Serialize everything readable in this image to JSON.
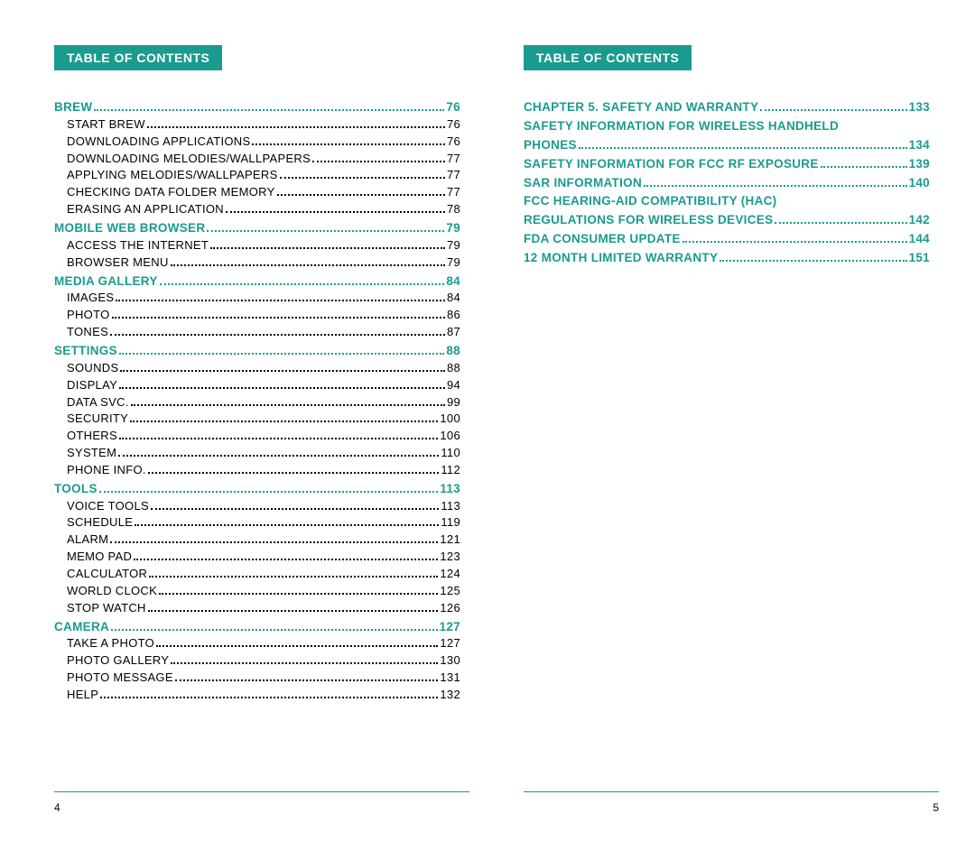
{
  "colors": {
    "accent": "#1a9b8f",
    "text": "#000000",
    "background": "#ffffff"
  },
  "typography": {
    "header_fontsize": 14,
    "section_fontsize": 13.5,
    "entry_fontsize": 13,
    "footer_fontsize": 12
  },
  "left_page": {
    "header": "Table of Contents",
    "footer_page": "4",
    "sections": [
      {
        "type": "section",
        "label": "Brew",
        "page": "76"
      },
      {
        "type": "entry",
        "label": "Start Brew",
        "page": "76"
      },
      {
        "type": "entry",
        "label": "Downloading Applications",
        "page": "76"
      },
      {
        "type": "entry",
        "label": "Downloading Melodies/Wallpapers",
        "page": "77"
      },
      {
        "type": "entry",
        "label": "Applying Melodies/Wallpapers",
        "page": "77"
      },
      {
        "type": "entry",
        "label": "Checking Data Folder Memory",
        "page": "77"
      },
      {
        "type": "entry",
        "label": "Erasing an Application",
        "page": "78"
      },
      {
        "type": "section",
        "label": "Mobile Web Browser",
        "page": "79"
      },
      {
        "type": "entry",
        "label": "Access the Internet",
        "page": "79"
      },
      {
        "type": "entry",
        "label": "Browser Menu",
        "page": "79"
      },
      {
        "type": "section",
        "label": "Media Gallery",
        "page": "84"
      },
      {
        "type": "entry",
        "label": "Images",
        "page": "84"
      },
      {
        "type": "entry",
        "label": "Photo",
        "page": "86"
      },
      {
        "type": "entry",
        "label": "Tones",
        "page": "87"
      },
      {
        "type": "section",
        "label": "Settings",
        "page": "88"
      },
      {
        "type": "entry",
        "label": "Sounds",
        "page": "88"
      },
      {
        "type": "entry",
        "label": "Display",
        "page": "94"
      },
      {
        "type": "entry",
        "label": "Data Svc.",
        "page": "99"
      },
      {
        "type": "entry",
        "label": "Security",
        "page": "100"
      },
      {
        "type": "entry",
        "label": "Others",
        "page": "106"
      },
      {
        "type": "entry",
        "label": "System",
        "page": "110"
      },
      {
        "type": "entry",
        "label": "Phone Info.",
        "page": "112"
      },
      {
        "type": "section",
        "label": "Tools",
        "page": "113"
      },
      {
        "type": "entry",
        "label": "Voice Tools",
        "page": "113"
      },
      {
        "type": "entry",
        "label": "Schedule",
        "page": "119"
      },
      {
        "type": "entry",
        "label": "Alarm",
        "page": "121"
      },
      {
        "type": "entry",
        "label": "Memo Pad",
        "page": "123"
      },
      {
        "type": "entry",
        "label": "Calculator",
        "page": "124"
      },
      {
        "type": "entry",
        "label": "World Clock",
        "page": "125"
      },
      {
        "type": "entry",
        "label": "Stop Watch",
        "page": "126"
      },
      {
        "type": "section",
        "label": "Camera",
        "page": "127"
      },
      {
        "type": "entry",
        "label": "Take a Photo",
        "page": "127"
      },
      {
        "type": "entry",
        "label": "Photo Gallery",
        "page": "130"
      },
      {
        "type": "entry",
        "label": "Photo Message",
        "page": "131"
      },
      {
        "type": "entry",
        "label": "Help",
        "page": "132"
      }
    ]
  },
  "right_page": {
    "header": "Table of Contents",
    "footer_page": "5",
    "sections": [
      {
        "type": "section",
        "label": "Chapter 5. Safety and Warranty",
        "page": "133"
      },
      {
        "type": "section-nopage",
        "label": "Safety Information for Wireless Handheld"
      },
      {
        "type": "section",
        "label": "Phones",
        "page": "134"
      },
      {
        "type": "section",
        "label": "Safety Information for FCC RF Exposure",
        "page": "139"
      },
      {
        "type": "section",
        "label": "SAR Information",
        "page": "140"
      },
      {
        "type": "section-nopage",
        "label": "FCC Hearing-Aid Compatibility (HAC)"
      },
      {
        "type": "section",
        "label": "Regulations for Wireless Devices",
        "page": "142"
      },
      {
        "type": "section",
        "label": "FDA Consumer Update",
        "page": "144"
      },
      {
        "type": "section",
        "label": "12 Month Limited Warranty",
        "page": "151"
      }
    ]
  }
}
